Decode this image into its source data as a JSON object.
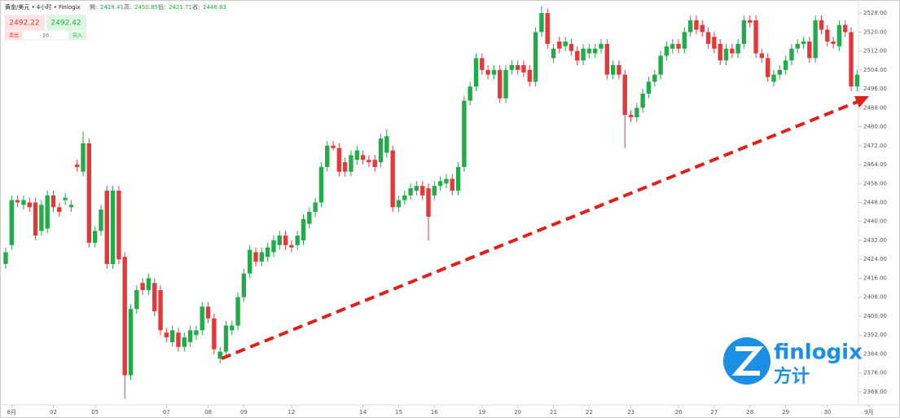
{
  "header": {
    "symbol": "黄金/美元 • 4小时 • Finlogix",
    "open_label": "開:",
    "open": 2428.41,
    "high_label": "高:",
    "high": 2450.85,
    "low_label": "低:",
    "low": 2421.71,
    "close_label": "收:",
    "close": 2448.83
  },
  "trade": {
    "sell_price": 2492.22,
    "buy_price": 2492.42,
    "sell": "卖出",
    "lots": 20,
    "buy": "买入"
  },
  "logo": {
    "name": "finlogix",
    "cn": "方计"
  },
  "chart_data": {
    "type": "candlestick",
    "up_color": "#22ab4a",
    "down_color": "#e5383b",
    "ylim": [
      2364,
      2532
    ],
    "yticks": [
      {
        "value": 2368,
        "label": "2368.00"
      },
      {
        "value": 2376,
        "label": "2376.00"
      },
      {
        "value": 2384,
        "label": "2384.00"
      },
      {
        "value": 2392,
        "label": "2392.00"
      },
      {
        "value": 2400,
        "label": "2400.00"
      },
      {
        "value": 2408,
        "label": "2408.00"
      },
      {
        "value": 2416,
        "label": "2416.00"
      },
      {
        "value": 2424,
        "label": "2424.00"
      },
      {
        "value": 2432,
        "label": "2432.00"
      },
      {
        "value": 2440,
        "label": "2440.00"
      },
      {
        "value": 2448,
        "label": "2448.00"
      },
      {
        "value": 2456,
        "label": "2456.00"
      },
      {
        "value": 2464,
        "label": "2464.00"
      },
      {
        "value": 2472,
        "label": "2472.00"
      },
      {
        "value": 2480,
        "label": "2480.00"
      },
      {
        "value": 2488,
        "label": "2488.00"
      },
      {
        "value": 2496,
        "label": "2496.00"
      },
      {
        "value": 2504,
        "label": "2504.00"
      },
      {
        "value": 2512,
        "label": "2512.00"
      },
      {
        "value": 2520,
        "label": "2520.00"
      },
      {
        "value": 2528,
        "label": "2528.00"
      }
    ],
    "xticks": [
      {
        "value": 1,
        "label": "8月"
      },
      {
        "value": 8,
        "label": "02"
      },
      {
        "value": 15,
        "label": "05"
      },
      {
        "value": 27,
        "label": "07"
      },
      {
        "value": 34,
        "label": "08"
      },
      {
        "value": 40,
        "label": "09"
      },
      {
        "value": 48,
        "label": "12"
      },
      {
        "value": 60,
        "label": "14"
      },
      {
        "value": 66,
        "label": "15"
      },
      {
        "value": 72,
        "label": "16"
      },
      {
        "value": 80,
        "label": "19"
      },
      {
        "value": 86,
        "label": "20"
      },
      {
        "value": 92,
        "label": "21"
      },
      {
        "value": 98,
        "label": "22"
      },
      {
        "value": 105,
        "label": "23"
      },
      {
        "value": 113,
        "label": "26"
      },
      {
        "value": 119,
        "label": "27"
      },
      {
        "value": 125,
        "label": "28"
      },
      {
        "value": 131,
        "label": "29"
      },
      {
        "value": 138,
        "label": "30"
      },
      {
        "value": 145,
        "label": "9月"
      }
    ],
    "open": [
      2422,
      2430,
      2449,
      2447,
      2448,
      2448,
      2436,
      2437,
      2451,
      2446,
      2449,
      2446,
      2464,
      2461,
      2473,
      2431,
      2436,
      2453,
      2422,
      2453,
      2425,
      2375,
      2403,
      2414,
      2411,
      2414,
      2411,
      2393,
      2389,
      2393,
      2387,
      2389,
      2392,
      2394,
      2404,
      2399,
      2382,
      2385,
      2394,
      2396,
      2408,
      2418,
      2427,
      2423,
      2425,
      2427,
      2430,
      2434,
      2430,
      2430,
      2432,
      2439,
      2444,
      2448,
      2463,
      2472,
      2471,
      2465,
      2461,
      2466,
      2468,
      2466,
      2466,
      2465,
      2469,
      2470,
      2446,
      2449,
      2451,
      2453,
      2455,
      2454,
      2451,
      2455,
      2456,
      2458,
      2453,
      2463,
      2491,
      2497,
      2509,
      2504,
      2502,
      2504,
      2492,
      2504,
      2506,
      2506,
      2504,
      2499,
      2520,
      2528,
      2509,
      2516,
      2514,
      2515,
      2512,
      2508,
      2511,
      2511,
      2513,
      2515,
      2502,
      2506,
      2502,
      2485,
      2484,
      2488,
      2494,
      2499,
      2502,
      2510,
      2513,
      2515,
      2513,
      2520,
      2525,
      2523,
      2520,
      2518,
      2515,
      2508,
      2513,
      2511,
      2515,
      2525,
      2525,
      2511,
      2509,
      2499,
      2502,
      2504,
      2508,
      2513,
      2515,
      2516,
      2509,
      2525,
      2521,
      2516,
      2514,
      2523,
      2520,
      2497
    ],
    "high": [
      2429,
      2451,
      2451,
      2451,
      2450,
      2450,
      2449,
      2453,
      2453,
      2448,
      2452,
      2449,
      2466,
      2478,
      2475,
      2438,
      2447,
      2455,
      2455,
      2455,
      2427,
      2405,
      2413,
      2416,
      2418,
      2416,
      2413,
      2395,
      2396,
      2395,
      2393,
      2396,
      2396,
      2406,
      2406,
      2401,
      2387,
      2398,
      2398,
      2410,
      2420,
      2430,
      2429,
      2429,
      2431,
      2434,
      2436,
      2436,
      2432,
      2436,
      2443,
      2446,
      2450,
      2465,
      2474,
      2474,
      2473,
      2467,
      2470,
      2472,
      2470,
      2468,
      2468,
      2477,
      2479,
      2472,
      2451,
      2453,
      2456,
      2457,
      2457,
      2456,
      2457,
      2459,
      2460,
      2460,
      2465,
      2493,
      2499,
      2511,
      2511,
      2506,
      2506,
      2506,
      2506,
      2508,
      2508,
      2508,
      2506,
      2522,
      2531,
      2530,
      2515,
      2518,
      2518,
      2517,
      2514,
      2515,
      2515,
      2515,
      2517,
      2517,
      2508,
      2508,
      2504,
      2487,
      2490,
      2496,
      2501,
      2504,
      2512,
      2516,
      2517,
      2517,
      2522,
      2527,
      2527,
      2525,
      2522,
      2520,
      2517,
      2515,
      2515,
      2517,
      2527,
      2527,
      2527,
      2513,
      2511,
      2504,
      2506,
      2510,
      2515,
      2517,
      2518,
      2518,
      2527,
      2527,
      2523,
      2518,
      2525,
      2525,
      2522,
      2504
    ],
    "low": [
      2420,
      2428,
      2446,
      2445,
      2444,
      2432,
      2434,
      2435,
      2444,
      2442,
      2447,
      2444,
      2461,
      2459,
      2429,
      2429,
      2434,
      2420,
      2420,
      2422,
      2365,
      2373,
      2401,
      2409,
      2409,
      2400,
      2392,
      2389,
      2387,
      2385,
      2385,
      2387,
      2390,
      2392,
      2397,
      2384,
      2380,
      2383,
      2392,
      2394,
      2406,
      2416,
      2421,
      2421,
      2423,
      2425,
      2428,
      2428,
      2427,
      2428,
      2430,
      2437,
      2442,
      2446,
      2461,
      2470,
      2459,
      2459,
      2459,
      2464,
      2464,
      2463,
      2461,
      2463,
      2467,
      2444,
      2444,
      2447,
      2449,
      2451,
      2449,
      2432,
      2449,
      2453,
      2454,
      2451,
      2451,
      2461,
      2489,
      2495,
      2502,
      2500,
      2500,
      2490,
      2490,
      2502,
      2502,
      2501,
      2497,
      2497,
      2518,
      2513,
      2507,
      2511,
      2512,
      2510,
      2506,
      2506,
      2509,
      2509,
      2511,
      2500,
      2500,
      2500,
      2471,
      2482,
      2482,
      2486,
      2492,
      2497,
      2500,
      2508,
      2511,
      2511,
      2511,
      2518,
      2519,
      2518,
      2513,
      2511,
      2506,
      2506,
      2509,
      2509,
      2513,
      2522,
      2509,
      2507,
      2499,
      2497,
      2500,
      2502,
      2506,
      2511,
      2513,
      2507,
      2507,
      2519,
      2514,
      2513,
      2512,
      2518,
      2495,
      2495
    ],
    "close": [
      2427,
      2449,
      2448,
      2449,
      2446,
      2434,
      2447,
      2451,
      2446,
      2444,
      2450,
      2447,
      2463,
      2473,
      2431,
      2436,
      2445,
      2422,
      2453,
      2424,
      2375,
      2403,
      2411,
      2411,
      2416,
      2402,
      2394,
      2391,
      2394,
      2387,
      2391,
      2394,
      2394,
      2404,
      2399,
      2386,
      2385,
      2396,
      2396,
      2408,
      2418,
      2428,
      2423,
      2427,
      2429,
      2432,
      2434,
      2430,
      2429,
      2434,
      2441,
      2444,
      2448,
      2463,
      2472,
      2471,
      2461,
      2461,
      2468,
      2470,
      2466,
      2465,
      2463,
      2475,
      2476,
      2446,
      2449,
      2451,
      2454,
      2455,
      2451,
      2442,
      2455,
      2457,
      2458,
      2453,
      2463,
      2491,
      2497,
      2509,
      2504,
      2502,
      2504,
      2492,
      2504,
      2506,
      2504,
      2503,
      2499,
      2520,
      2528,
      2515,
      2513,
      2513,
      2516,
      2512,
      2508,
      2513,
      2513,
      2513,
      2515,
      2502,
      2506,
      2502,
      2485,
      2484,
      2488,
      2494,
      2499,
      2502,
      2510,
      2514,
      2515,
      2513,
      2520,
      2525,
      2521,
      2520,
      2515,
      2513,
      2508,
      2513,
      2511,
      2515,
      2525,
      2524,
      2511,
      2509,
      2501,
      2502,
      2504,
      2508,
      2513,
      2515,
      2516,
      2509,
      2525,
      2521,
      2516,
      2515,
      2523,
      2520,
      2497,
      2502
    ]
  }
}
